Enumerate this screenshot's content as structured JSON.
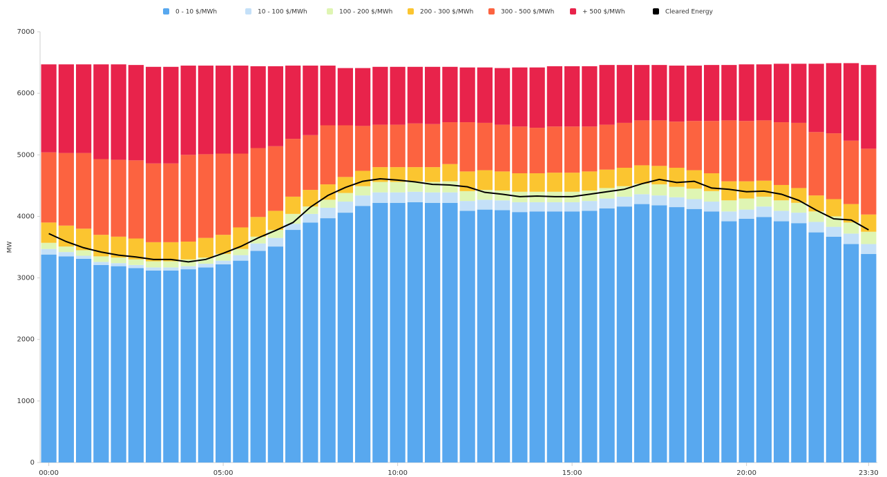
{
  "chart_data": {
    "type": "bar",
    "stacked": true,
    "y_label": "MW",
    "categories": [
      "00:00",
      null,
      null,
      null,
      null,
      null,
      null,
      null,
      null,
      null,
      "05:00",
      null,
      null,
      null,
      null,
      null,
      null,
      null,
      null,
      null,
      "10:00",
      null,
      null,
      null,
      null,
      null,
      null,
      null,
      null,
      null,
      "15:00",
      null,
      null,
      null,
      null,
      null,
      null,
      null,
      null,
      null,
      "20:00",
      null,
      null,
      null,
      null,
      null,
      null,
      "23:30"
    ],
    "ylim": [
      0,
      7000
    ],
    "yticks": [
      0,
      1000,
      2000,
      3000,
      4000,
      5000,
      6000,
      7000
    ],
    "grid": false,
    "legend": "top",
    "series": [
      {
        "name": "0 - 10 $/MWh",
        "color": "#58a8ef",
        "values": [
          3380,
          3350,
          3310,
          3210,
          3190,
          3160,
          3120,
          3120,
          3140,
          3170,
          3220,
          3280,
          3440,
          3510,
          3780,
          3900,
          3970,
          4060,
          4170,
          4220,
          4220,
          4230,
          4220,
          4220,
          4090,
          4110,
          4100,
          4070,
          4080,
          4080,
          4080,
          4090,
          4130,
          4160,
          4200,
          4180,
          4150,
          4120,
          4080,
          3920,
          3960,
          3990,
          3920,
          3890,
          3740,
          3670,
          3550,
          3390
        ]
      },
      {
        "name": "10 - 100 $/MWh",
        "color": "#c4e0f8",
        "values": [
          90,
          70,
          50,
          50,
          50,
          50,
          50,
          50,
          50,
          60,
          60,
          90,
          120,
          140,
          100,
          140,
          170,
          180,
          170,
          170,
          170,
          170,
          170,
          170,
          160,
          160,
          160,
          160,
          150,
          150,
          150,
          160,
          160,
          160,
          160,
          160,
          160,
          160,
          160,
          160,
          150,
          170,
          170,
          170,
          170,
          160,
          170,
          160
        ]
      },
      {
        "name": "100 - 200 $/MWh",
        "color": "#dff5b3",
        "values": [
          100,
          90,
          90,
          90,
          90,
          90,
          100,
          100,
          110,
          100,
          110,
          100,
          110,
          130,
          160,
          120,
          130,
          140,
          150,
          170,
          170,
          170,
          170,
          180,
          160,
          160,
          160,
          170,
          170,
          170,
          170,
          170,
          170,
          170,
          170,
          180,
          170,
          170,
          170,
          180,
          180,
          160,
          170,
          160,
          170,
          170,
          180,
          200
        ]
      },
      {
        "name": "200 - 300 $/MWh",
        "color": "#fbc530",
        "values": [
          330,
          340,
          350,
          350,
          340,
          340,
          310,
          310,
          290,
          320,
          310,
          350,
          320,
          310,
          280,
          270,
          250,
          260,
          250,
          240,
          240,
          230,
          240,
          280,
          320,
          320,
          310,
          300,
          300,
          310,
          310,
          310,
          300,
          300,
          300,
          300,
          310,
          300,
          290,
          310,
          280,
          260,
          250,
          240,
          260,
          280,
          300,
          280
        ]
      },
      {
        "name": "300 - 500 $/MWh",
        "color": "#fc6340",
        "values": [
          1140,
          1180,
          1230,
          1230,
          1250,
          1270,
          1280,
          1280,
          1410,
          1360,
          1320,
          1200,
          1120,
          1050,
          940,
          890,
          960,
          840,
          730,
          690,
          690,
          710,
          700,
          680,
          800,
          770,
          760,
          760,
          740,
          750,
          750,
          730,
          730,
          730,
          730,
          740,
          750,
          800,
          850,
          990,
          980,
          980,
          1020,
          1060,
          1030,
          1070,
          1030,
          1070
        ]
      },
      {
        "name": "+ 500 $/MWh",
        "color": "#e8234b",
        "values": [
          1430,
          1440,
          1440,
          1540,
          1550,
          1550,
          1570,
          1570,
          1450,
          1440,
          1430,
          1430,
          1330,
          1300,
          1190,
          1130,
          970,
          930,
          940,
          940,
          940,
          920,
          930,
          900,
          890,
          900,
          920,
          960,
          980,
          980,
          980,
          980,
          970,
          940,
          900,
          900,
          910,
          900,
          910,
          900,
          920,
          910,
          950,
          960,
          1110,
          1140,
          1260,
          1360
        ]
      },
      {
        "name": "Cleared Energy",
        "color": "#000000",
        "type": "line",
        "values": [
          3720,
          3590,
          3490,
          3420,
          3370,
          3340,
          3300,
          3300,
          3260,
          3300,
          3400,
          3510,
          3650,
          3770,
          3900,
          4150,
          4340,
          4470,
          4570,
          4610,
          4590,
          4560,
          4520,
          4510,
          4480,
          4390,
          4360,
          4320,
          4330,
          4320,
          4320,
          4360,
          4400,
          4440,
          4530,
          4600,
          4550,
          4570,
          4460,
          4440,
          4400,
          4410,
          4360,
          4260,
          4100,
          3960,
          3940,
          3780
        ]
      }
    ]
  }
}
